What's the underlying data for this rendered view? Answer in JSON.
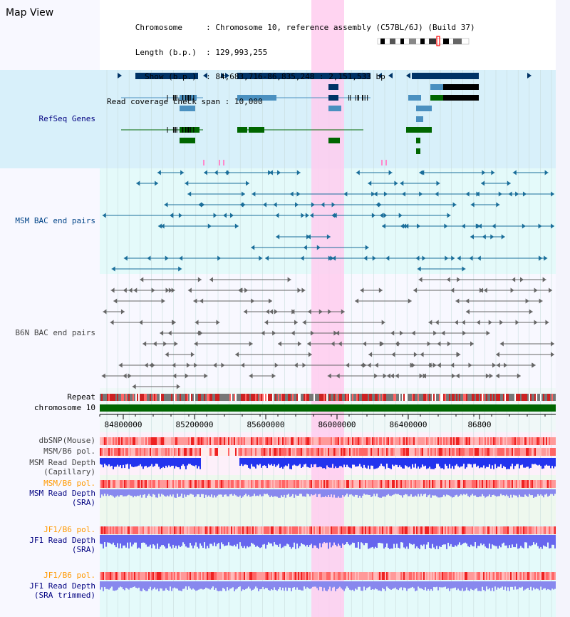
{
  "title": "Map View",
  "info": {
    "chromosome_label": "Chromosome",
    "chromosome_value": "Chromosome 10, reference assembly (C57BL/6J) (Build 37)",
    "length_label": "Length (b.p.)",
    "length_value": "129,993,255",
    "show_label": "Show (b.p.)",
    "show_value": "84,683,716-86,835,248 : 2,151,533 bp",
    "span_label": "Read coverage check span",
    "span_value": "10,000"
  },
  "tracks": {
    "refseq": "RefSeq Genes",
    "msm_bac": "MSM BAC end pairs",
    "b6n_bac": "B6N BAC end pairs",
    "repeat": "Repeat",
    "chromosome": "chromosome 10",
    "dbsnp": "dbSNP(Mouse)",
    "msm_b6_pol": "MSM/B6 pol.",
    "msm_read_depth_cap_1": "MSM Read Depth",
    "msm_read_depth_cap_2": "(Capillary)",
    "msm_b6_pol_2": "MSM/B6 pol.",
    "msm_read_depth_sra_1": "MSM Read Depth",
    "msm_read_depth_sra_2": "(SRA)",
    "jf1_b6_pol": "JF1/B6 pol.",
    "jf1_read_depth_sra_1": "JF1 Read Depth",
    "jf1_read_depth_sra_2": "(SRA)",
    "jf1_b6_pol_2": "JF1/B6 pol.",
    "jf1_read_depth_trim_1": "JF1 Read Depth",
    "jf1_read_depth_trim_2": "(SRA trimmed)"
  },
  "axis_ticks": [
    "84800000",
    "85200000",
    "85600000",
    "86000000",
    "86400000",
    "86800"
  ],
  "colors": {
    "gene_dark": "#003366",
    "gene_blue": "#4a90c0",
    "gene_green": "#006600",
    "highlight": "#ffccee",
    "refseq_bg": "#d8f0fa",
    "chrom_bar": "#006600",
    "label_blue": "#000080",
    "label_orange": "#ff9900",
    "msm_label": "#004488"
  }
}
